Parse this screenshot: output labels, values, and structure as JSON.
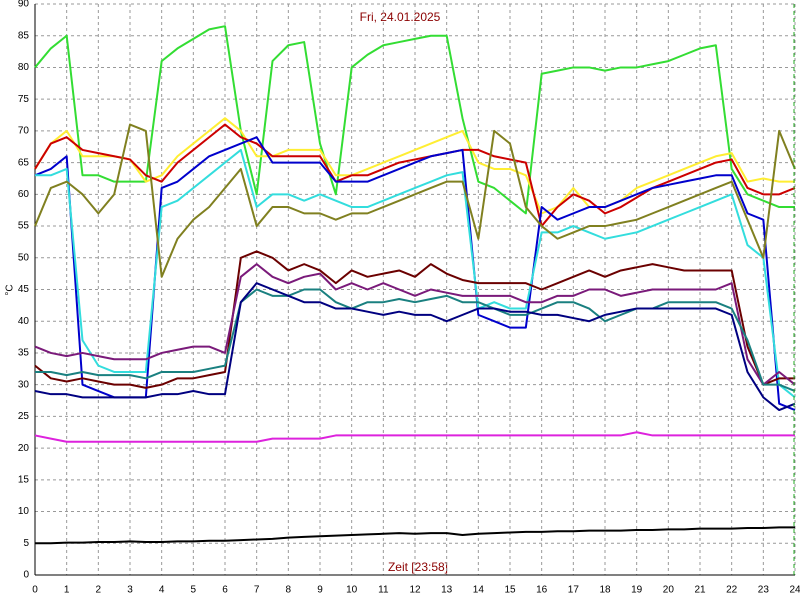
{
  "chart_data": {
    "type": "line",
    "title": "Fri, 24.01.2025",
    "x_label": "Zeit [23:58]",
    "y_label": "°C",
    "grid": true,
    "xlim": [
      0,
      24
    ],
    "ylim": [
      0,
      90
    ],
    "xticks": [
      0,
      1,
      2,
      3,
      4,
      5,
      6,
      7,
      8,
      9,
      10,
      11,
      12,
      13,
      14,
      15,
      16,
      17,
      18,
      19,
      20,
      21,
      22,
      23,
      24
    ],
    "yticks": [
      0,
      5,
      10,
      15,
      20,
      25,
      30,
      35,
      40,
      45,
      50,
      55,
      60,
      65,
      70,
      75,
      80,
      85,
      90
    ],
    "x": [
      0,
      0.5,
      1,
      1.5,
      2,
      2.5,
      3,
      3.5,
      4,
      4.5,
      5,
      5.5,
      6,
      6.5,
      7,
      7.5,
      8,
      8.5,
      9,
      9.5,
      10,
      10.5,
      11,
      11.5,
      12,
      12.5,
      13,
      13.5,
      14,
      14.5,
      15,
      15.5,
      16,
      16.5,
      17,
      17.5,
      18,
      18.5,
      19,
      19.5,
      20,
      20.5,
      21,
      21.5,
      22,
      22.5,
      23,
      23.5,
      24
    ],
    "series": [
      {
        "color": "#33dd33",
        "values": [
          80,
          83,
          85,
          63,
          63,
          62,
          62,
          62,
          81,
          83,
          84.5,
          86,
          86.5,
          70,
          60,
          81,
          83.5,
          84,
          68,
          60,
          80,
          82,
          83.5,
          84,
          84.5,
          85,
          85,
          72,
          62,
          61,
          59,
          57,
          79,
          79.5,
          80,
          80,
          79.5,
          80,
          80,
          80.5,
          81,
          82,
          83,
          83.5,
          64,
          60,
          59,
          58,
          58
        ]
      },
      {
        "color": "#ffee33",
        "values": [
          64,
          68,
          70,
          66,
          66,
          66,
          65.5,
          62,
          63,
          66,
          68,
          70,
          72,
          70,
          66,
          66,
          67,
          67,
          67,
          63,
          63,
          64,
          65,
          66,
          67,
          68,
          69,
          70,
          65,
          64,
          64,
          63,
          57,
          58,
          61,
          58,
          58,
          59,
          61,
          62,
          63,
          64,
          65,
          66,
          66.5,
          62,
          62.5,
          62,
          62
        ]
      },
      {
        "color": "#cc0000",
        "values": [
          64,
          68,
          69,
          67,
          66.5,
          66,
          65.5,
          63,
          62,
          65,
          67,
          69,
          71,
          69,
          68,
          66,
          66,
          66,
          66,
          62,
          63,
          63,
          64,
          65,
          65.5,
          66,
          66.5,
          67,
          67,
          66,
          65.5,
          65,
          55,
          58,
          60,
          59,
          57,
          58,
          59.5,
          61,
          62,
          63,
          64,
          65,
          65.5,
          61,
          60,
          60,
          61
        ]
      },
      {
        "color": "#0000cc",
        "values": [
          63,
          64,
          66,
          30,
          29,
          28,
          28,
          28,
          61,
          62,
          64,
          66,
          67,
          68,
          69,
          65,
          65,
          65,
          65,
          62,
          62,
          62,
          63,
          64,
          65,
          66,
          66.5,
          67,
          41,
          40,
          39,
          39,
          58,
          56,
          57,
          58,
          58,
          59,
          60,
          61,
          61.5,
          62,
          62.5,
          63,
          63,
          57,
          56,
          27,
          26
        ]
      },
      {
        "color": "#33dddd",
        "values": [
          63,
          63,
          64,
          37,
          33,
          32,
          32,
          32,
          58,
          59,
          61,
          63,
          65,
          67,
          58,
          60,
          60,
          59,
          60,
          59,
          58,
          58,
          59,
          60,
          61,
          62,
          63,
          63.5,
          42,
          43,
          42,
          42,
          54,
          54,
          55,
          54,
          53,
          53.5,
          54,
          55,
          56,
          57,
          58,
          59,
          60,
          52,
          50,
          30,
          28
        ]
      },
      {
        "color": "#808020",
        "values": [
          55,
          61,
          62,
          60,
          57,
          60,
          71,
          70,
          47,
          53,
          56,
          58,
          61,
          64,
          55,
          58,
          58,
          57,
          57,
          56,
          57,
          57,
          58,
          59,
          60,
          61,
          62,
          62,
          53,
          70,
          68,
          58,
          55,
          53,
          54,
          55,
          55,
          55.5,
          56,
          57,
          58,
          59,
          60,
          61,
          62,
          56,
          50,
          70,
          64
        ]
      },
      {
        "color": "#6b0000",
        "values": [
          33,
          31,
          30.5,
          31,
          30.5,
          30,
          30,
          29.5,
          30,
          31,
          31,
          31.5,
          32,
          50,
          51,
          50,
          48,
          49,
          48,
          46,
          48,
          47,
          47.5,
          48,
          47,
          49,
          47.5,
          46.5,
          46,
          46,
          46,
          46,
          45,
          46,
          47,
          48,
          47,
          48,
          48.5,
          49,
          48.5,
          48,
          48,
          48,
          48,
          36,
          30,
          31,
          31
        ]
      },
      {
        "color": "#7a1a7a",
        "values": [
          36,
          35,
          34.5,
          35,
          34.5,
          34,
          34,
          34,
          35,
          35.5,
          36,
          36,
          35,
          47,
          49,
          47,
          46,
          47,
          47.5,
          45,
          46,
          45,
          46,
          45,
          44,
          45,
          44.5,
          44,
          44,
          44,
          44,
          43,
          43,
          44,
          44,
          45,
          45,
          44,
          44.5,
          45,
          45,
          45,
          45,
          45,
          46,
          34,
          30,
          32,
          30
        ]
      },
      {
        "color": "#1a8080",
        "values": [
          32,
          32,
          31.5,
          32,
          31.5,
          31.5,
          31.5,
          31,
          32,
          32,
          32,
          32.5,
          33,
          43,
          45,
          44,
          44,
          45,
          45,
          43,
          42,
          43,
          43,
          43.5,
          43,
          43.5,
          44,
          43,
          43,
          42,
          41,
          41,
          42,
          43,
          43,
          42,
          40,
          41,
          42,
          42,
          43,
          43,
          43,
          43,
          42,
          37,
          30,
          30,
          29
        ]
      },
      {
        "color": "#000080",
        "values": [
          29,
          28.5,
          28.5,
          28,
          28,
          28,
          28,
          28,
          28.5,
          28.5,
          29,
          28.5,
          28.5,
          43,
          46,
          45,
          44,
          43,
          43,
          42,
          42,
          41.5,
          41,
          41.5,
          41,
          41,
          40,
          41,
          42,
          42,
          41.5,
          41.5,
          41,
          41,
          40.5,
          40,
          41,
          41.5,
          42,
          42,
          42,
          42,
          42,
          42,
          41,
          32,
          28,
          26,
          27
        ]
      },
      {
        "color": "#dd22dd",
        "values": [
          22,
          21.5,
          21,
          21,
          21,
          21,
          21,
          21,
          21,
          21,
          21,
          21,
          21,
          21,
          21,
          21.5,
          21.5,
          21.5,
          21.5,
          22,
          22,
          22,
          22,
          22,
          22,
          22,
          22,
          22,
          22,
          22,
          22,
          22,
          22,
          22,
          22,
          22,
          22,
          22,
          22.5,
          22,
          22,
          22,
          22,
          22,
          22,
          22,
          22,
          22,
          22
        ]
      },
      {
        "color": "#000000",
        "values": [
          5,
          5,
          5.1,
          5.1,
          5.2,
          5.2,
          5.3,
          5.2,
          5.2,
          5.3,
          5.3,
          5.4,
          5.4,
          5.5,
          5.6,
          5.7,
          5.9,
          6,
          6.1,
          6.2,
          6.3,
          6.4,
          6.5,
          6.6,
          6.5,
          6.6,
          6.6,
          6.3,
          6.5,
          6.6,
          6.7,
          6.8,
          6.8,
          6.9,
          6.9,
          7,
          7,
          7,
          7.1,
          7.1,
          7.2,
          7.2,
          7.3,
          7.3,
          7.3,
          7.4,
          7.4,
          7.5,
          7.5
        ]
      }
    ]
  }
}
